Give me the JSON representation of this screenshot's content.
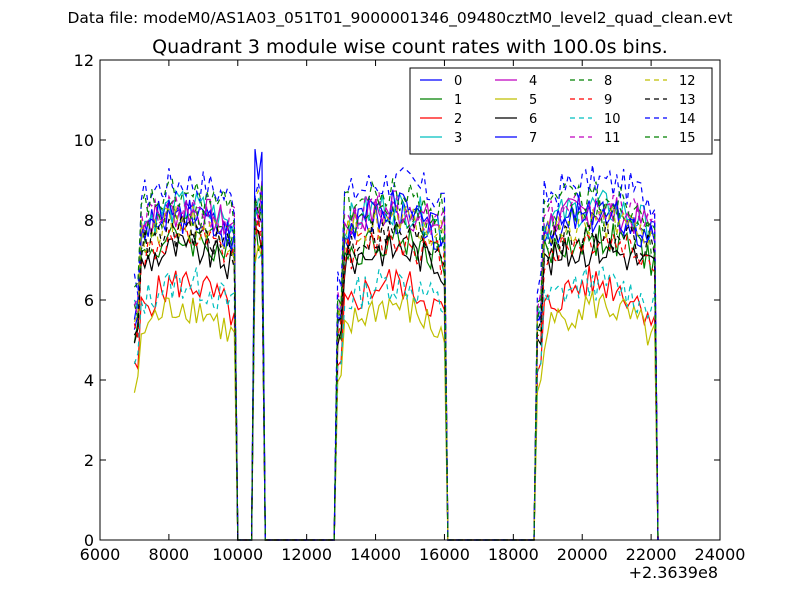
{
  "figure": {
    "suptitle": "Data file: modeM0/AS1A03_051T01_9000001346_09480cztM0_level2_quad_clean.evt"
  },
  "chart_data": {
    "type": "line",
    "title": "Quadrant 3 module wise count rates with 100.0s bins.",
    "xlabel": "",
    "ylabel": "",
    "x_offset_label": "+2.3639e8",
    "xlim": [
      6000,
      24000
    ],
    "ylim": [
      0,
      12
    ],
    "xticks": [
      6000,
      8000,
      10000,
      12000,
      14000,
      16000,
      18000,
      20000,
      22000,
      24000
    ],
    "yticks": [
      0,
      2,
      4,
      6,
      8,
      10,
      12
    ],
    "legend_position": "top-right",
    "series": [
      {
        "name": "0",
        "color": "#0000ff",
        "dash": "solid",
        "base": 7.6,
        "peak": 9.0
      },
      {
        "name": "1",
        "color": "#008000",
        "dash": "solid",
        "base": 7.0,
        "peak": 8.5
      },
      {
        "name": "2",
        "color": "#ff0000",
        "dash": "solid",
        "base": 5.6,
        "peak": 8.0
      },
      {
        "name": "3",
        "color": "#00bfbf",
        "dash": "solid",
        "base": 7.8,
        "peak": 9.3
      },
      {
        "name": "4",
        "color": "#bf00bf",
        "dash": "solid",
        "base": 7.8,
        "peak": 9.0
      },
      {
        "name": "5",
        "color": "#bfbf00",
        "dash": "solid",
        "base": 5.0,
        "peak": 7.5
      },
      {
        "name": "6",
        "color": "#000000",
        "dash": "solid",
        "base": 6.8,
        "peak": 8.2
      },
      {
        "name": "7",
        "color": "#0000ff",
        "dash": "solid",
        "base": 7.4,
        "peak": 10.0
      },
      {
        "name": "8",
        "color": "#008000",
        "dash": "dashed",
        "base": 7.5,
        "peak": 9.2
      },
      {
        "name": "9",
        "color": "#ff0000",
        "dash": "dashed",
        "base": 7.0,
        "peak": 8.4
      },
      {
        "name": "10",
        "color": "#00bfbf",
        "dash": "dashed",
        "base": 5.8,
        "peak": 7.6
      },
      {
        "name": "11",
        "color": "#bf00bf",
        "dash": "dashed",
        "base": 7.9,
        "peak": 9.0
      },
      {
        "name": "12",
        "color": "#bfbf00",
        "dash": "dashed",
        "base": 7.5,
        "peak": 8.8
      },
      {
        "name": "13",
        "color": "#000000",
        "dash": "dashed",
        "base": 7.2,
        "peak": 8.6
      },
      {
        "name": "14",
        "color": "#0000ff",
        "dash": "dashed",
        "base": 8.5,
        "peak": 9.8
      },
      {
        "name": "15",
        "color": "#008000",
        "dash": "dashed",
        "base": 8.2,
        "peak": 9.4
      }
    ],
    "segments": [
      {
        "name": "on",
        "x_start": 7000,
        "x_end": 9900
      },
      {
        "name": "spike",
        "x_start": 10500,
        "x_end": 10700
      },
      {
        "name": "on",
        "x_start": 12900,
        "x_end": 16000
      },
      {
        "name": "on",
        "x_start": 18700,
        "x_end": 22100
      }
    ],
    "bin_size": 100,
    "data_start": 7000,
    "data_end": 22200
  }
}
